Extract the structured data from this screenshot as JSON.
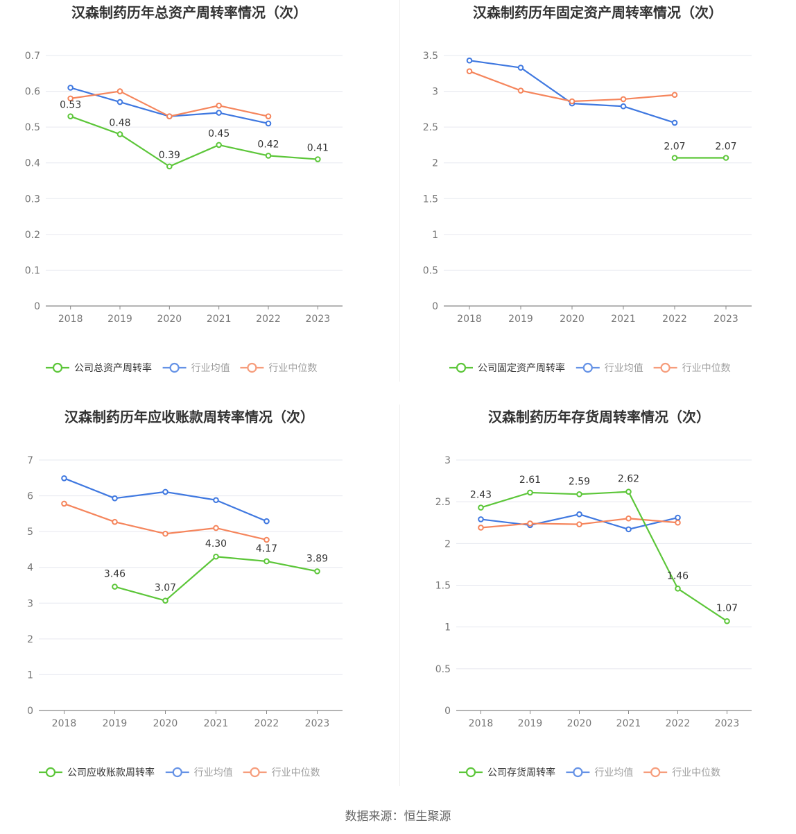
{
  "source_text": "数据来源：恒生聚源",
  "colors": {
    "company": "#5cc639",
    "average": "#3f78e0",
    "median": "#f5855c",
    "grid": "#e6e8ef",
    "axis": "#888888"
  },
  "chart_data": [
    {
      "type": "line",
      "title": "汉森制药历年总资产周转率情况（次）",
      "categories": [
        "2018",
        "2019",
        "2020",
        "2021",
        "2022",
        "2023"
      ],
      "ylim": [
        0,
        0.7
      ],
      "yticks": [
        0,
        0.1,
        0.2,
        0.3,
        0.4,
        0.5,
        0.6,
        0.7
      ],
      "ytick_labels": [
        "0",
        "0.1",
        "0.2",
        "0.3",
        "0.4",
        "0.5",
        "0.6",
        "0.7"
      ],
      "series": [
        {
          "name": "公司总资产周转率",
          "role": "company",
          "values": [
            0.53,
            0.48,
            0.39,
            0.45,
            0.42,
            0.41
          ],
          "labels": [
            "0.53",
            "0.48",
            "0.39",
            "0.45",
            "0.42",
            "0.41"
          ]
        },
        {
          "name": "行业均值",
          "role": "average",
          "values": [
            0.61,
            0.57,
            0.53,
            0.54,
            0.51,
            null
          ]
        },
        {
          "name": "行业中位数",
          "role": "median",
          "values": [
            0.58,
            0.6,
            0.53,
            0.56,
            0.53,
            null
          ]
        }
      ]
    },
    {
      "type": "line",
      "title": "汉森制药历年固定资产周转率情况（次）",
      "categories": [
        "2018",
        "2019",
        "2020",
        "2021",
        "2022",
        "2023"
      ],
      "ylim": [
        0,
        3.5
      ],
      "yticks": [
        0,
        0.5,
        1,
        1.5,
        2,
        2.5,
        3,
        3.5
      ],
      "ytick_labels": [
        "0",
        "0.5",
        "1",
        "1.5",
        "2",
        "2.5",
        "3",
        "3.5"
      ],
      "series": [
        {
          "name": "公司固定资产周转率",
          "role": "company",
          "values": [
            null,
            null,
            null,
            null,
            2.07,
            2.07
          ],
          "labels": [
            null,
            null,
            null,
            null,
            "2.07",
            "2.07"
          ]
        },
        {
          "name": "行业均值",
          "role": "average",
          "values": [
            3.43,
            3.33,
            2.83,
            2.79,
            2.56,
            null
          ]
        },
        {
          "name": "行业中位数",
          "role": "median",
          "values": [
            3.28,
            3.01,
            2.86,
            2.89,
            2.95,
            null
          ]
        }
      ]
    },
    {
      "type": "line",
      "title": "汉森制药历年应收账款周转率情况（次）",
      "categories": [
        "2018",
        "2019",
        "2020",
        "2021",
        "2022",
        "2023"
      ],
      "ylim": [
        0,
        7
      ],
      "yticks": [
        0,
        1,
        2,
        3,
        4,
        5,
        6,
        7
      ],
      "ytick_labels": [
        "0",
        "1",
        "2",
        "3",
        "4",
        "5",
        "6",
        "7"
      ],
      "series": [
        {
          "name": "公司应收账款周转率",
          "role": "company",
          "values": [
            null,
            3.46,
            3.07,
            4.3,
            4.17,
            3.89
          ],
          "labels": [
            null,
            "3.46",
            "3.07",
            "4.30",
            "4.17",
            "3.89"
          ]
        },
        {
          "name": "行业均值",
          "role": "average",
          "values": [
            6.49,
            5.93,
            6.11,
            5.88,
            5.29,
            null
          ]
        },
        {
          "name": "行业中位数",
          "role": "median",
          "values": [
            5.78,
            5.27,
            4.94,
            5.1,
            4.77,
            null
          ]
        }
      ]
    },
    {
      "type": "line",
      "title": "汉森制药历年存货周转率情况（次）",
      "categories": [
        "2018",
        "2019",
        "2020",
        "2021",
        "2022",
        "2023"
      ],
      "ylim": [
        0,
        3
      ],
      "yticks": [
        0,
        0.5,
        1,
        1.5,
        2,
        2.5,
        3
      ],
      "ytick_labels": [
        "0",
        "0.5",
        "1",
        "1.5",
        "2",
        "2.5",
        "3"
      ],
      "series": [
        {
          "name": "公司存货周转率",
          "role": "company",
          "values": [
            2.43,
            2.61,
            2.59,
            2.62,
            1.46,
            1.07
          ],
          "labels": [
            "2.43",
            "2.61",
            "2.59",
            "2.62",
            "1.46",
            "1.07"
          ]
        },
        {
          "name": "行业均值",
          "role": "average",
          "values": [
            2.29,
            2.22,
            2.35,
            2.17,
            2.31,
            null
          ]
        },
        {
          "name": "行业中位数",
          "role": "median",
          "values": [
            2.19,
            2.24,
            2.23,
            2.3,
            2.25,
            null
          ]
        }
      ]
    }
  ]
}
